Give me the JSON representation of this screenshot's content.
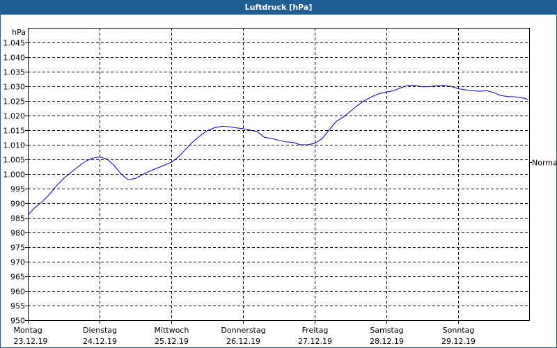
{
  "window": {
    "title": "Luftdruck [hPa]"
  },
  "chart_data": {
    "type": "line",
    "title": "Luftdruck [hPa]",
    "ylabel": "hPa",
    "xlabel": "",
    "ylim": [
      950,
      1050
    ],
    "y_ticks": [
      "950",
      "955",
      "960",
      "965",
      "970",
      "975",
      "980",
      "985",
      "990",
      "995",
      "1.000",
      "1.005",
      "1.010",
      "1.015",
      "1.020",
      "1.025",
      "1.030",
      "1.035",
      "1.040",
      "1.045"
    ],
    "x_ticks": [
      {
        "day": "Montag",
        "date": "23.12.19"
      },
      {
        "day": "Dienstag",
        "date": "24.12.19"
      },
      {
        "day": "Mittwoch",
        "date": "25.12.19"
      },
      {
        "day": "Donnerstag",
        "date": "26.12.19"
      },
      {
        "day": "Freitag",
        "date": "27.12.19"
      },
      {
        "day": "Samstag",
        "date": "28.12.19"
      },
      {
        "day": "Sonntag",
        "date": "29.12.19"
      }
    ],
    "reference_line": {
      "label": "Normal",
      "value": 1004
    },
    "grid": true,
    "series": [
      {
        "name": "Luftdruck",
        "color": "#0000c0",
        "x_days": [
          0,
          0.1,
          0.2,
          0.3,
          0.4,
          0.5,
          0.6,
          0.7,
          0.8,
          0.9,
          1.0,
          1.1,
          1.2,
          1.3,
          1.4,
          1.5,
          1.6,
          1.7,
          1.8,
          1.9,
          2.0,
          2.1,
          2.2,
          2.3,
          2.4,
          2.5,
          2.6,
          2.7,
          2.8,
          2.9,
          3.0,
          3.1,
          3.2,
          3.3,
          3.4,
          3.5,
          3.6,
          3.7,
          3.8,
          3.9,
          4.0,
          4.1,
          4.2,
          4.3,
          4.4,
          4.5,
          4.6,
          4.7,
          4.8,
          4.9,
          5.0,
          5.1,
          5.2,
          5.3,
          5.4,
          5.5,
          5.6,
          5.7,
          5.8,
          5.9,
          6.0,
          6.1,
          6.2,
          6.3,
          6.4,
          6.5,
          6.6,
          6.7,
          6.8,
          6.9,
          6.98
        ],
        "values": [
          986,
          988.5,
          990.5,
          993,
          996,
          998.5,
          1000.5,
          1002.5,
          1004.3,
          1005.4,
          1005.8,
          1005.2,
          1003,
          1000,
          998,
          998.5,
          999.8,
          1001,
          1002,
          1003,
          1004,
          1005.8,
          1008.5,
          1011,
          1013,
          1014.8,
          1015.8,
          1016.3,
          1016.2,
          1015.8,
          1015.5,
          1015,
          1014.5,
          1012.5,
          1012.2,
          1011.5,
          1011,
          1010.8,
          1010,
          1010,
          1010.5,
          1012,
          1015,
          1018,
          1019.5,
          1021.5,
          1023.5,
          1025.2,
          1026.5,
          1027.5,
          1028,
          1028.5,
          1029.5,
          1030.3,
          1030.3,
          1029.8,
          1029.9,
          1030.2,
          1030.3,
          1030,
          1029.2,
          1028.8,
          1028.5,
          1028.3,
          1028.5,
          1027.8,
          1026.8,
          1026.5,
          1026.4,
          1026,
          1025.5
        ]
      }
    ]
  }
}
